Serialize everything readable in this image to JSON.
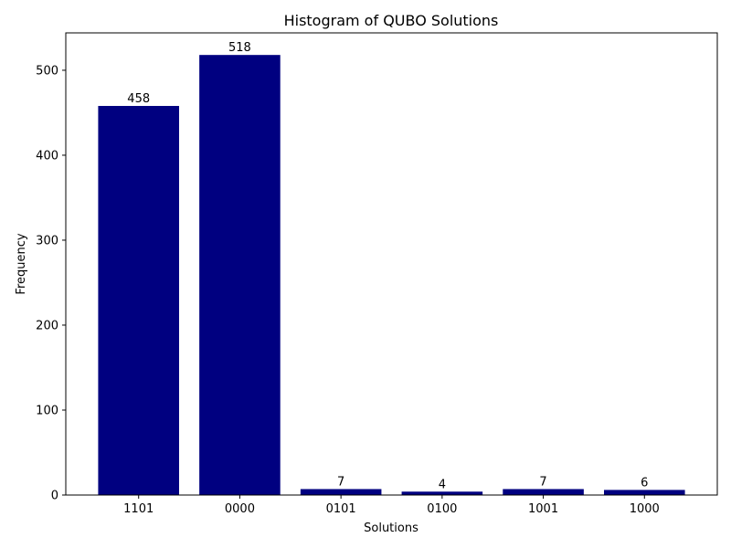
{
  "chart_data": {
    "type": "bar",
    "title": "Histogram of QUBO Solutions",
    "xlabel": "Solutions",
    "ylabel": "Frequency",
    "categories": [
      "1101",
      "0000",
      "0101",
      "0100",
      "1001",
      "1000"
    ],
    "values": [
      458,
      518,
      7,
      4,
      7,
      6
    ],
    "data_labels": [
      "458",
      "518",
      "7",
      "4",
      "7",
      "6"
    ],
    "ylim": [
      0,
      544
    ],
    "yticks": [
      0,
      100,
      200,
      300,
      400,
      500
    ],
    "ytick_labels": [
      "0",
      "100",
      "200",
      "300",
      "400",
      "500"
    ],
    "bar_color": "#000080",
    "grid": false,
    "legend": "none"
  }
}
